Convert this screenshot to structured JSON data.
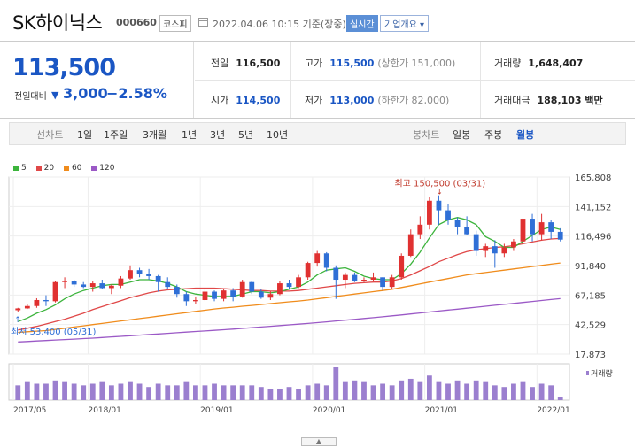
{
  "header": {
    "name": "SK하이닉스",
    "code": "000660",
    "market": "코스피",
    "datetime": "2022.04.06 10:15  기준(장중)",
    "realtime_label": "실시간",
    "overview_label": "기업개요 ▾"
  },
  "price": {
    "current": "113,500",
    "prev_label": "전일대비",
    "change": "3,000",
    "change_pct": "−2.58%",
    "down_symbol": "▼"
  },
  "stats": {
    "prev_close_label": "전일",
    "prev_close": "116,500",
    "high_label": "고가",
    "high": "115,500",
    "high_limit": "(상한가 151,000)",
    "volume_label": "거래량",
    "volume": "1,648,407",
    "open_label": "시가",
    "open": "114,500",
    "low_label": "저가",
    "low": "113,000",
    "low_limit": "(하한가 82,000)",
    "amount_label": "거래대금",
    "amount": "188,103 백만"
  },
  "tabs": {
    "line_label": "선차트",
    "line": [
      "1일",
      "1주일",
      "3개월",
      "1년",
      "3년",
      "5년",
      "10년"
    ],
    "candle_label": "봉차트",
    "candle": [
      "일봉",
      "주봉",
      "월봉"
    ],
    "active_candle": "월봉"
  },
  "colors": {
    "up": "#e03131",
    "down": "#2f6fd6",
    "ma5": "#3cb43c",
    "ma20": "#e04848",
    "ma60": "#f08c1c",
    "ma120": "#9b59c6",
    "volume": "#9b7fcf",
    "accent": "#1a56c4"
  },
  "chart_data": {
    "type": "candlestick",
    "interval": "monthly",
    "legend": [
      "5",
      "20",
      "60",
      "120"
    ],
    "y_ticks": [
      "165,808",
      "141,152",
      "116,496",
      "91,840",
      "67,185",
      "42,529",
      "17,873"
    ],
    "y_tick_values": [
      165808,
      141152,
      116496,
      91840,
      67185,
      42529,
      17873
    ],
    "x_ticks": [
      "2017/05",
      "2018/01",
      "2019/01",
      "2020/01",
      "2021/01",
      "2022/01"
    ],
    "x_tick_index": [
      0,
      8,
      20,
      32,
      44,
      56
    ],
    "annotation_high": "최고 150,500 (03/31)",
    "annotation_low": "최저 53,400 (05/31)",
    "volume_label": "거래량",
    "candles": [
      [
        54500,
        56500,
        53400,
        56000
      ],
      [
        56000,
        60000,
        55500,
        58000
      ],
      [
        58000,
        64500,
        56500,
        63000
      ],
      [
        63000,
        67000,
        58000,
        62000
      ],
      [
        62000,
        79000,
        61000,
        78000
      ],
      [
        78000,
        82000,
        73000,
        79000
      ],
      [
        79000,
        80000,
        74000,
        76000
      ],
      [
        76000,
        78000,
        73000,
        74000
      ],
      [
        74000,
        79000,
        70000,
        77000
      ],
      [
        77000,
        80000,
        72000,
        73000
      ],
      [
        73000,
        76000,
        68000,
        75000
      ],
      [
        75000,
        83000,
        73000,
        81000
      ],
      [
        81000,
        92000,
        80000,
        88000
      ],
      [
        88000,
        90000,
        82000,
        85000
      ],
      [
        85000,
        89000,
        80000,
        83000
      ],
      [
        83000,
        84000,
        70000,
        78000
      ],
      [
        78000,
        82000,
        72000,
        74000
      ],
      [
        74000,
        76000,
        65000,
        68000
      ],
      [
        68000,
        70000,
        58000,
        62000
      ],
      [
        62000,
        66000,
        60000,
        63000
      ],
      [
        63000,
        72000,
        62000,
        70000
      ],
      [
        70000,
        71000,
        62000,
        64000
      ],
      [
        64000,
        72000,
        62000,
        71000
      ],
      [
        71000,
        73000,
        62000,
        66000
      ],
      [
        66000,
        80000,
        65000,
        78000
      ],
      [
        78000,
        79000,
        68000,
        70000
      ],
      [
        70000,
        72000,
        64000,
        65000
      ],
      [
        65000,
        70000,
        63000,
        68000
      ],
      [
        68000,
        79000,
        67000,
        77000
      ],
      [
        77000,
        80000,
        72000,
        74000
      ],
      [
        74000,
        84000,
        73000,
        82000
      ],
      [
        82000,
        95000,
        80000,
        94000
      ],
      [
        94000,
        104000,
        91000,
        102000
      ],
      [
        102000,
        103000,
        87000,
        90000
      ],
      [
        90000,
        92000,
        64000,
        80000
      ],
      [
        80000,
        86000,
        73000,
        84000
      ],
      [
        84000,
        86000,
        78000,
        79000
      ],
      [
        79000,
        82000,
        78000,
        80000
      ],
      [
        80000,
        86000,
        79000,
        82000
      ],
      [
        82000,
        82000,
        71000,
        74000
      ],
      [
        74000,
        84000,
        72000,
        82000
      ],
      [
        82000,
        102000,
        80000,
        100000
      ],
      [
        100000,
        122000,
        99000,
        118000
      ],
      [
        118000,
        133000,
        114000,
        126000
      ],
      [
        126000,
        149000,
        122000,
        146000
      ],
      [
        146000,
        150500,
        126000,
        138000
      ],
      [
        138000,
        143000,
        126000,
        130000
      ],
      [
        130000,
        132000,
        118000,
        124000
      ],
      [
        124000,
        133000,
        117000,
        118000
      ],
      [
        118000,
        121000,
        100000,
        104000
      ],
      [
        104000,
        110000,
        99000,
        108000
      ],
      [
        108000,
        113000,
        90000,
        102000
      ],
      [
        102000,
        110000,
        99000,
        107000
      ],
      [
        107000,
        114000,
        104000,
        112000
      ],
      [
        112000,
        132000,
        110000,
        131000
      ],
      [
        131000,
        135000,
        112000,
        118000
      ],
      [
        118000,
        135000,
        113000,
        128000
      ],
      [
        128000,
        130000,
        114000,
        120000
      ],
      [
        120000,
        123000,
        112000,
        113500
      ]
    ],
    "ma5": [
      45000,
      48000,
      52000,
      55000,
      59000,
      64000,
      68000,
      71000,
      73000,
      75000,
      76000,
      76000,
      78000,
      80000,
      80000,
      79000,
      77000,
      74000,
      70000,
      68000,
      67000,
      66000,
      66000,
      66000,
      68000,
      70000,
      70000,
      69000,
      70000,
      72000,
      74000,
      78000,
      84000,
      88000,
      89000,
      90000,
      87000,
      83000,
      81000,
      80000,
      80000,
      85000,
      93000,
      103000,
      115000,
      126000,
      130000,
      132000,
      130000,
      126000,
      116000,
      112000,
      107000,
      107000,
      112000,
      117000,
      122000,
      124000,
      122000
    ],
    "ma20": [
      38000,
      39500,
      41000,
      43000,
      45000,
      47000,
      49500,
      52000,
      55000,
      57500,
      60000,
      62500,
      65000,
      67000,
      69000,
      70500,
      71500,
      72000,
      72500,
      73000,
      73000,
      73000,
      72500,
      72000,
      71500,
      71000,
      71000,
      70500,
      70500,
      70500,
      71000,
      72000,
      73000,
      74000,
      75000,
      76000,
      77000,
      77500,
      78000,
      78000,
      79000,
      81000,
      84000,
      87500,
      91000,
      95000,
      98000,
      101000,
      103500,
      105000,
      106000,
      107000,
      107500,
      108500,
      110000,
      111500,
      113000,
      114000,
      114500
    ],
    "ma60": [
      36000,
      36500,
      37000,
      37500,
      38500,
      39500,
      40500,
      41500,
      42500,
      43500,
      44500,
      45500,
      46500,
      47500,
      48500,
      49500,
      50500,
      51500,
      52500,
      53500,
      54500,
      55500,
      56300,
      57000,
      57800,
      58500,
      59200,
      60000,
      60800,
      61500,
      62200,
      63000,
      64000,
      65000,
      66000,
      67000,
      68000,
      69000,
      70000,
      71000,
      72000,
      73500,
      75000,
      76500,
      78000,
      79500,
      81000,
      82500,
      84000,
      85000,
      86000,
      87000,
      88000,
      89000,
      90000,
      91000,
      92000,
      93000,
      94000
    ],
    "ma120": [
      28000,
      28400,
      28800,
      29200,
      29600,
      30000,
      30400,
      30800,
      31200,
      31700,
      32200,
      32700,
      33200,
      33700,
      34200,
      34700,
      35200,
      35700,
      36200,
      36700,
      37200,
      37700,
      38200,
      38700,
      39300,
      39900,
      40500,
      41100,
      41700,
      42300,
      42900,
      43500,
      44100,
      44800,
      45500,
      46200,
      46900,
      47600,
      48300,
      49000,
      49800,
      50600,
      51400,
      52200,
      53000,
      53800,
      54600,
      55400,
      56200,
      57000,
      57800,
      58600,
      59400,
      60200,
      61000,
      61800,
      62600,
      63400,
      64200
    ],
    "volume": [
      0.45,
      0.55,
      0.5,
      0.5,
      0.6,
      0.55,
      0.5,
      0.45,
      0.5,
      0.55,
      0.45,
      0.5,
      0.55,
      0.5,
      0.4,
      0.5,
      0.45,
      0.45,
      0.55,
      0.45,
      0.45,
      0.5,
      0.45,
      0.45,
      0.45,
      0.45,
      0.4,
      0.35,
      0.35,
      0.4,
      0.35,
      0.45,
      0.5,
      0.45,
      1.0,
      0.55,
      0.6,
      0.55,
      0.45,
      0.5,
      0.45,
      0.6,
      0.65,
      0.55,
      0.75,
      0.55,
      0.5,
      0.6,
      0.5,
      0.6,
      0.55,
      0.45,
      0.4,
      0.5,
      0.55,
      0.4,
      0.5,
      0.45,
      0.1
    ]
  }
}
